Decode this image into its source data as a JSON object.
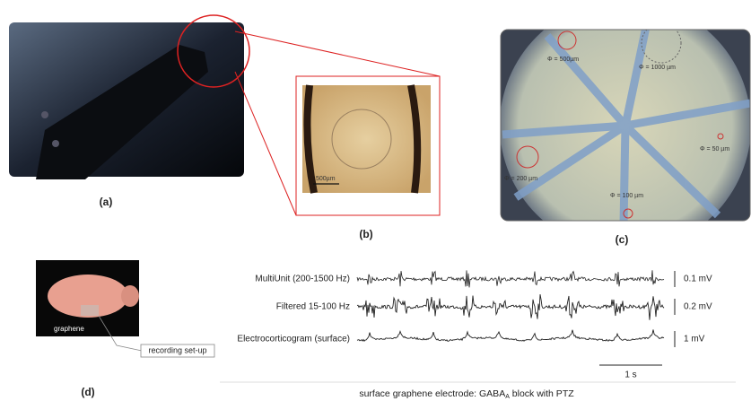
{
  "panels": {
    "a": {
      "label": "(a)"
    },
    "b": {
      "label": "(b)",
      "scale_bar": "500µm"
    },
    "c": {
      "label": "(c)",
      "diameters": [
        "Φ = 500µm",
        "Φ = 1000 µm",
        "Φ = 50 µm",
        "Φ = 200 µm",
        "Φ = 100 µm"
      ]
    },
    "d": {
      "label": "(d)",
      "photo_label": "graphene",
      "callout": "recording set-up",
      "traces": [
        {
          "name": "MultiUnit (200-1500 Hz)",
          "scale": "0.1 mV"
        },
        {
          "name": "Filtered 15-100 Hz",
          "scale": "0.2 mV"
        },
        {
          "name": "Electrocorticogram (surface)",
          "scale": "1 mV"
        }
      ],
      "time_scale": "1 s",
      "caption": {
        "before": "surface graphene electrode: GABA",
        "subscript": "A",
        "after": " block with PTZ"
      }
    }
  }
}
